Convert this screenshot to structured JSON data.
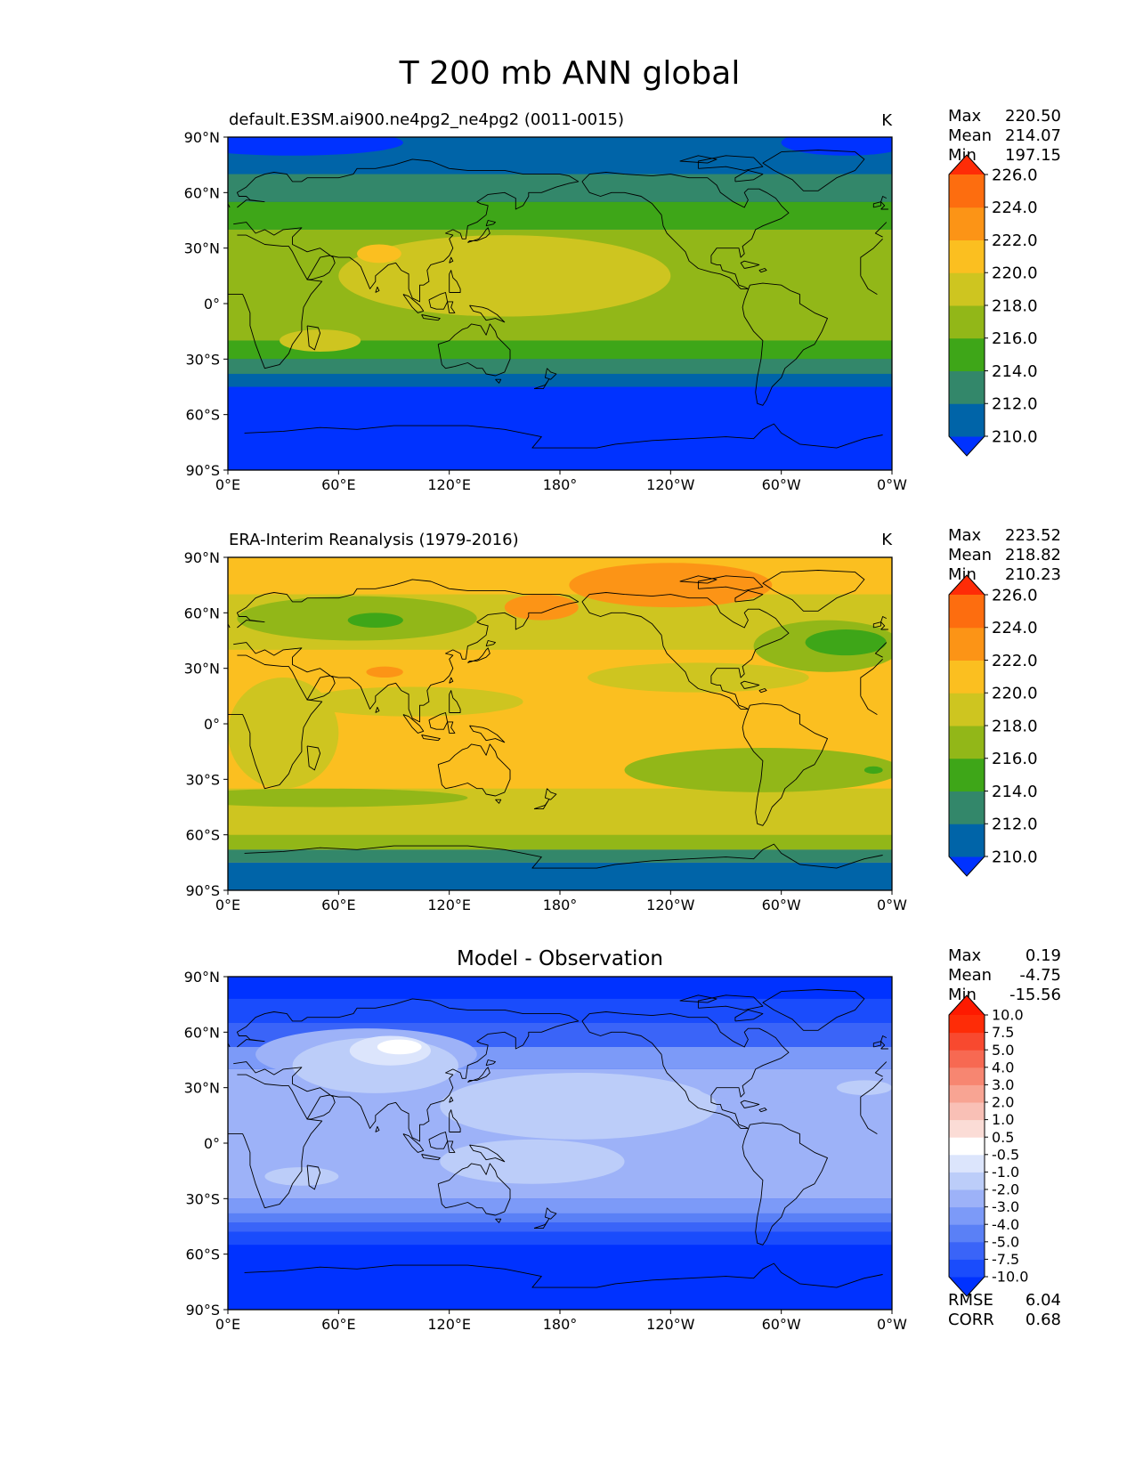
{
  "figure": {
    "title": "T 200 mb ANN global"
  },
  "chart_data": [
    {
      "type": "heatmap",
      "title": "default.E3SM.ai900.ne4pg2_ne4pg2 (0011-0015)",
      "units": "K",
      "stats": {
        "max_label": "Max",
        "max": "220.50",
        "mean_label": "Mean",
        "mean": "214.07",
        "min_label": "Min",
        "min": "197.15"
      },
      "colorbar": {
        "levels": [
          "210.0",
          "212.0",
          "214.0",
          "216.0",
          "218.0",
          "220.0",
          "222.0",
          "224.0",
          "226.0"
        ],
        "colors": [
          "#0032ff",
          "#0064a8",
          "#33876a",
          "#3ea618",
          "#92b718",
          "#cec520",
          "#fbbf20",
          "#fc9416",
          "#fd6d0f",
          "#fe2c07"
        ]
      },
      "xticks": [
        "0°E",
        "60°E",
        "120°E",
        "180°",
        "120°W",
        "60°W",
        "0°W"
      ],
      "yticks": [
        "90°N",
        "60°N",
        "30°N",
        "0°",
        "30°S",
        "60°S",
        "90°S"
      ],
      "bands": [
        {
          "lat": [
            70,
            90
          ],
          "color": "#0064a8"
        },
        {
          "lat": [
            55,
            70
          ],
          "color": "#33876a"
        },
        {
          "lat": [
            40,
            55
          ],
          "color": "#3ea618"
        },
        {
          "lat": [
            -20,
            40
          ],
          "color": "#92b718"
        },
        {
          "lat": [
            -30,
            -20
          ],
          "color": "#3ea618"
        },
        {
          "lat": [
            -38,
            -30
          ],
          "color": "#33876a"
        },
        {
          "lat": [
            -45,
            -38
          ],
          "color": "#0064a8"
        },
        {
          "lat": [
            -90,
            -45
          ],
          "color": "#0032ff"
        }
      ],
      "blobs": [
        {
          "lon": 150,
          "lat": 15,
          "rlon": 90,
          "rlat": 22,
          "color": "#cec520"
        },
        {
          "lon": 50,
          "lat": -20,
          "rlon": 22,
          "rlat": 6,
          "color": "#cec520"
        },
        {
          "lon": 82,
          "lat": 27,
          "rlon": 12,
          "rlat": 5,
          "color": "#fbbf20"
        },
        {
          "lon": 35,
          "lat": 87,
          "rlon": 60,
          "rlat": 7,
          "color": "#0032ff"
        },
        {
          "lon": 335,
          "lat": 87,
          "rlon": 35,
          "rlat": 7,
          "color": "#0032ff"
        }
      ]
    },
    {
      "type": "heatmap",
      "title": "ERA-Interim Reanalysis (1979-2016)",
      "units": "K",
      "stats": {
        "max_label": "Max",
        "max": "223.52",
        "mean_label": "Mean",
        "mean": "218.82",
        "min_label": "Min",
        "min": "210.23"
      },
      "colorbar": {
        "levels": [
          "210.0",
          "212.0",
          "214.0",
          "216.0",
          "218.0",
          "220.0",
          "222.0",
          "224.0",
          "226.0"
        ],
        "colors": [
          "#0032ff",
          "#0064a8",
          "#33876a",
          "#3ea618",
          "#92b718",
          "#cec520",
          "#fbbf20",
          "#fc9416",
          "#fd6d0f",
          "#fe2c07"
        ]
      },
      "xticks": [
        "0°E",
        "60°E",
        "120°E",
        "180°",
        "120°W",
        "60°W",
        "0°W"
      ],
      "yticks": [
        "90°N",
        "60°N",
        "30°N",
        "0°",
        "30°S",
        "60°S",
        "90°S"
      ],
      "bands": [
        {
          "lat": [
            70,
            90
          ],
          "color": "#fbbf20"
        },
        {
          "lat": [
            40,
            70
          ],
          "color": "#cec520"
        },
        {
          "lat": [
            -35,
            40
          ],
          "color": "#fbbf20"
        },
        {
          "lat": [
            -60,
            -35
          ],
          "color": "#cec520"
        },
        {
          "lat": [
            -68,
            -60
          ],
          "color": "#92b718"
        },
        {
          "lat": [
            -75,
            -68
          ],
          "color": "#33876a"
        },
        {
          "lat": [
            -90,
            -75
          ],
          "color": "#0064a8"
        }
      ],
      "blobs": [
        {
          "lon": 70,
          "lat": 57,
          "rlon": 65,
          "rlat": 12,
          "color": "#92b718"
        },
        {
          "lon": 80,
          "lat": 56,
          "rlon": 15,
          "rlat": 4,
          "color": "#3ea618"
        },
        {
          "lon": 255,
          "lat": 25,
          "rlon": 60,
          "rlat": 8,
          "color": "#cec520"
        },
        {
          "lon": 325,
          "lat": 42,
          "rlon": 40,
          "rlat": 14,
          "color": "#92b718"
        },
        {
          "lon": 335,
          "lat": 44,
          "rlon": 22,
          "rlat": 7,
          "color": "#3ea618"
        },
        {
          "lon": 100,
          "lat": 12,
          "rlon": 60,
          "rlat": 8,
          "color": "#cec520"
        },
        {
          "lon": 30,
          "lat": -5,
          "rlon": 30,
          "rlat": 30,
          "color": "#cec520"
        },
        {
          "lon": 290,
          "lat": -25,
          "rlon": 75,
          "rlat": 12,
          "color": "#92b718"
        },
        {
          "lon": 50,
          "lat": -40,
          "rlon": 80,
          "rlat": 5,
          "color": "#92b718"
        },
        {
          "lon": 240,
          "lat": 75,
          "rlon": 55,
          "rlat": 12,
          "color": "#fc9416"
        },
        {
          "lon": 170,
          "lat": 63,
          "rlon": 20,
          "rlat": 7,
          "color": "#fc9416"
        },
        {
          "lon": 85,
          "lat": 28,
          "rlon": 10,
          "rlat": 3,
          "color": "#fc9416"
        },
        {
          "lon": 350,
          "lat": -25,
          "rlon": 5,
          "rlat": 2,
          "color": "#3ea618"
        }
      ]
    },
    {
      "type": "heatmap",
      "title": "Model - Observation",
      "units": "",
      "stats": {
        "max_label": "Max",
        "max": "0.19",
        "mean_label": "Mean",
        "mean": "-4.75",
        "min_label": "Min",
        "min": "-15.56"
      },
      "colorbar": {
        "levels": [
          "-10.0",
          "-7.5",
          "-5.0",
          "-4.0",
          "-3.0",
          "-2.0",
          "-1.0",
          "-0.5",
          "0.5",
          "1.0",
          "2.0",
          "3.0",
          "4.0",
          "5.0",
          "7.5",
          "10.0"
        ],
        "colors": [
          "#0032ff",
          "#1a4cfc",
          "#3a64f8",
          "#5a80f6",
          "#7c9af8",
          "#9db2f8",
          "#bccdf9",
          "#dce5fc",
          "#ffffff",
          "#fbdcd6",
          "#f9c0b6",
          "#f8a493",
          "#f78671",
          "#f76952",
          "#f8492f",
          "#fe2c07",
          "#fe1a00"
        ]
      },
      "xticks": [
        "0°E",
        "60°E",
        "120°E",
        "180°",
        "120°W",
        "60°W",
        "0°W"
      ],
      "yticks": [
        "90°N",
        "60°N",
        "30°N",
        "0°",
        "30°S",
        "60°S",
        "90°S"
      ],
      "bands": [
        {
          "lat": [
            78,
            90
          ],
          "color": "#0032ff"
        },
        {
          "lat": [
            65,
            78
          ],
          "color": "#1a4cfc"
        },
        {
          "lat": [
            52,
            65
          ],
          "color": "#3a64f8"
        },
        {
          "lat": [
            40,
            52
          ],
          "color": "#7c9af8"
        },
        {
          "lat": [
            -30,
            40
          ],
          "color": "#9db2f8"
        },
        {
          "lat": [
            -38,
            -30
          ],
          "color": "#7c9af8"
        },
        {
          "lat": [
            -43,
            -38
          ],
          "color": "#5a80f6"
        },
        {
          "lat": [
            -48,
            -43
          ],
          "color": "#3a64f8"
        },
        {
          "lat": [
            -55,
            -48
          ],
          "color": "#1a4cfc"
        },
        {
          "lat": [
            -90,
            -55
          ],
          "color": "#0032ff"
        }
      ],
      "blobs": [
        {
          "lon": 75,
          "lat": 48,
          "rlon": 60,
          "rlat": 14,
          "color": "#9db2f8"
        },
        {
          "lon": 80,
          "lat": 42,
          "rlon": 45,
          "rlat": 15,
          "color": "#bccdf9"
        },
        {
          "lon": 88,
          "lat": 50,
          "rlon": 22,
          "rlat": 8,
          "color": "#dce5fc"
        },
        {
          "lon": 93,
          "lat": 52,
          "rlon": 12,
          "rlat": 4,
          "color": "#ffffff"
        },
        {
          "lon": 190,
          "lat": 20,
          "rlon": 75,
          "rlat": 18,
          "color": "#bccdf9"
        },
        {
          "lon": 165,
          "lat": -10,
          "rlon": 50,
          "rlat": 12,
          "color": "#bccdf9"
        },
        {
          "lon": 300,
          "lat": 30,
          "rlon": 45,
          "rlat": 8,
          "color": "#9db2f8"
        },
        {
          "lon": 345,
          "lat": 30,
          "rlon": 15,
          "rlat": 4,
          "color": "#bccdf9"
        },
        {
          "lon": 40,
          "lat": -18,
          "rlon": 20,
          "rlat": 5,
          "color": "#bccdf9"
        }
      ],
      "extra_stats": {
        "rmse_label": "RMSE",
        "rmse": "6.04",
        "corr_label": "CORR",
        "corr": "0.68"
      }
    }
  ]
}
